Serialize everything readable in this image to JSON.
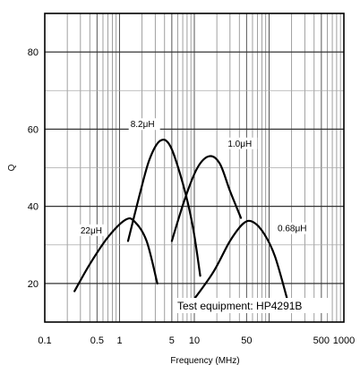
{
  "chart_data": {
    "type": "line",
    "title": "",
    "xlabel": "Frequency (MHz)",
    "ylabel": "Q",
    "xscale": "log",
    "xlim": [
      0.1,
      1000
    ],
    "ylim": [
      10,
      90
    ],
    "grid": "log-minor vertical, major horizontal every 20",
    "xticks": [
      {
        "value": 0.1,
        "label": "0.1"
      },
      {
        "value": 0.5,
        "label": "0.5"
      },
      {
        "value": 1,
        "label": "1"
      },
      {
        "value": 5,
        "label": "5"
      },
      {
        "value": 10,
        "label": "10"
      },
      {
        "value": 50,
        "label": "50"
      },
      {
        "value": 500,
        "label": "500"
      },
      {
        "value": 1000,
        "label": "1000"
      }
    ],
    "yticks": [
      {
        "value": 20,
        "label": "20"
      },
      {
        "value": 40,
        "label": "40"
      },
      {
        "value": 60,
        "label": "60"
      },
      {
        "value": 80,
        "label": "80"
      }
    ],
    "annotation": "Test equipment: HP4291B",
    "series": [
      {
        "name": "22μH",
        "label_at": [
          0.3,
          33
        ],
        "points": [
          [
            0.25,
            18
          ],
          [
            0.4,
            25
          ],
          [
            0.7,
            32
          ],
          [
            1.2,
            36.5
          ],
          [
            1.6,
            36
          ],
          [
            2.3,
            31
          ],
          [
            3.2,
            20
          ]
        ]
      },
      {
        "name": "8.2μH",
        "label_at": [
          1.4,
          60.5
        ],
        "points": [
          [
            1.3,
            31
          ],
          [
            1.8,
            42
          ],
          [
            2.5,
            52
          ],
          [
            3.5,
            57
          ],
          [
            4.8,
            55.5
          ],
          [
            7,
            46
          ],
          [
            9.5,
            35
          ],
          [
            12,
            22
          ]
        ]
      },
      {
        "name": "1.0μH",
        "label_at": [
          28,
          55.5
        ],
        "points": [
          [
            5,
            31
          ],
          [
            7.5,
            42
          ],
          [
            11,
            50
          ],
          [
            16,
            53
          ],
          [
            22,
            51
          ],
          [
            30,
            44
          ],
          [
            42,
            37
          ]
        ]
      },
      {
        "name": "0.68μH",
        "label_at": [
          130,
          33.5
        ],
        "points": [
          [
            10,
            16
          ],
          [
            18,
            23
          ],
          [
            30,
            31
          ],
          [
            45,
            35.5
          ],
          [
            60,
            36
          ],
          [
            85,
            33
          ],
          [
            120,
            27
          ],
          [
            180,
            15
          ]
        ]
      }
    ]
  }
}
